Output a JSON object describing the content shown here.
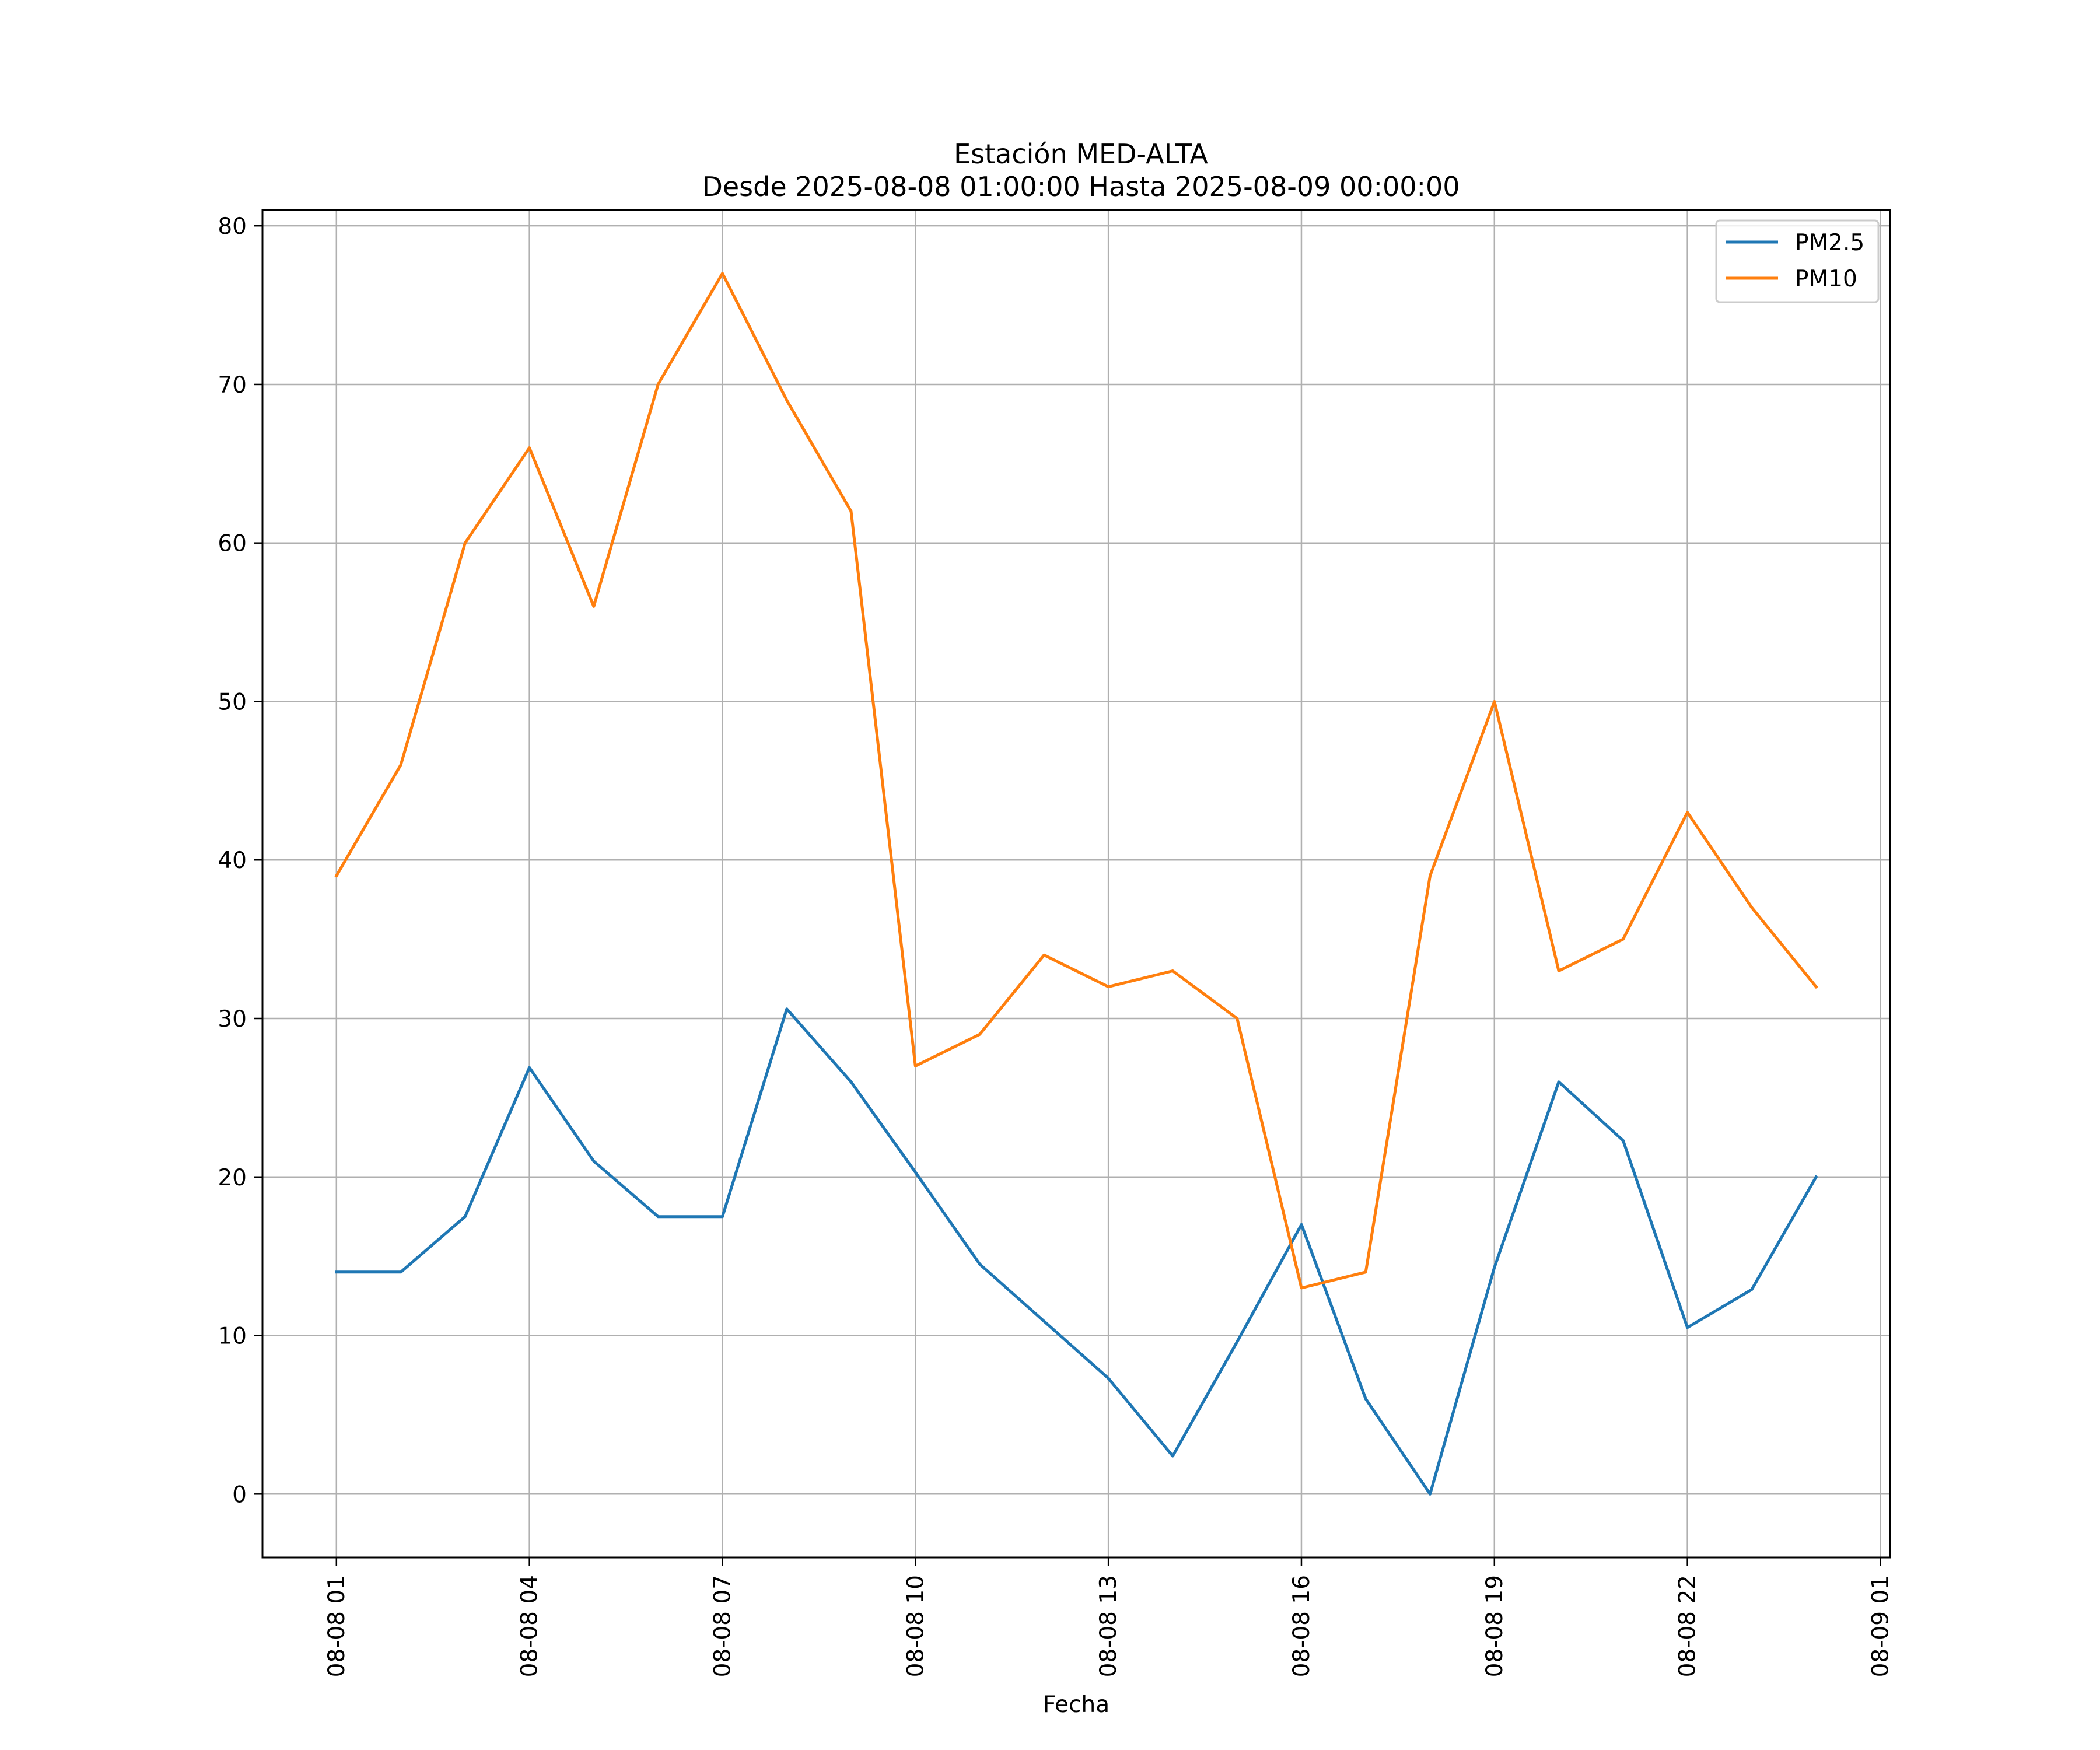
{
  "chart_data": {
    "type": "line",
    "title": "Estación MED-ALTA",
    "subtitle": "Desde 2025-08-08 01:00:00 Hasta 2025-08-09 00:00:00",
    "xlabel": "Fecha",
    "ylabel": "",
    "x_start": "2025-08-08 01:00",
    "x": [
      "08-08 01",
      "08-08 02",
      "08-08 03",
      "08-08 04",
      "08-08 05",
      "08-08 06",
      "08-08 07",
      "08-08 08",
      "08-08 09",
      "08-08 10",
      "08-08 11",
      "08-08 12",
      "08-08 13",
      "08-08 14",
      "08-08 15",
      "08-08 16",
      "08-08 17",
      "08-08 18",
      "08-08 19",
      "08-08 20",
      "08-08 21",
      "08-08 22",
      "08-08 23",
      "08-09 00"
    ],
    "x_ticks": [
      "08-08 01",
      "08-08 04",
      "08-08 07",
      "08-08 10",
      "08-08 13",
      "08-08 16",
      "08-08 19",
      "08-08 22",
      "08-09 01"
    ],
    "y_ticks": [
      "0",
      "10",
      "20",
      "30",
      "40",
      "50",
      "60",
      "70",
      "80"
    ],
    "xlim": [
      "2025-08-07 23:51",
      "2025-08-09 01:09"
    ],
    "ylim": [
      -4,
      81
    ],
    "grid": true,
    "legend_position": "top-right",
    "series": [
      {
        "name": "PM2.5",
        "color": "#1f77b4",
        "values": [
          14,
          14,
          17.5,
          26.9,
          21,
          17.5,
          17.5,
          30.6,
          26,
          20.3,
          14.5,
          10.9,
          7.3,
          2.4,
          9.6,
          17,
          6,
          0,
          14.3,
          26,
          22.3,
          10.5,
          12.9,
          20
        ]
      },
      {
        "name": "PM10",
        "color": "#ff7f0e",
        "values": [
          39,
          46,
          60,
          66,
          56,
          70,
          77,
          69,
          62,
          27,
          29,
          34,
          32,
          33,
          30,
          13,
          14,
          39,
          50,
          33,
          35,
          43,
          37,
          32
        ]
      }
    ]
  }
}
